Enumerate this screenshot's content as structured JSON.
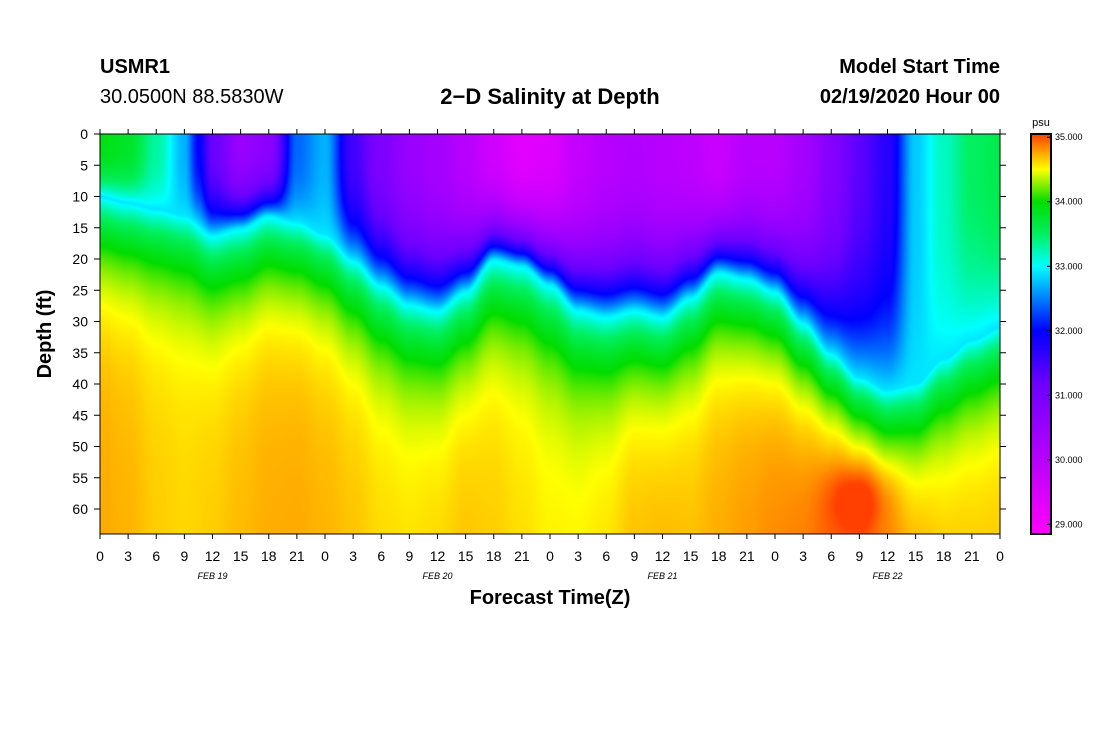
{
  "header": {
    "station": "USMR1",
    "coordinates": "30.0500N 88.5830W",
    "title": "2−D Salinity at Depth",
    "model_start_label": "Model Start Time",
    "model_start_value": "02/19/2020 Hour 00"
  },
  "chart_data": {
    "type": "heatmap",
    "title": "2−D Salinity at Depth",
    "xlabel": "Forecast Time(Z)",
    "ylabel": "Depth (ft)",
    "x_range_hours": [
      0,
      96
    ],
    "y_range_ft": [
      0,
      64
    ],
    "y_ticks": [
      0,
      5,
      10,
      15,
      20,
      25,
      30,
      35,
      40,
      45,
      50,
      55,
      60
    ],
    "x_tick_hours": [
      0,
      3,
      6,
      9,
      12,
      15,
      18,
      21,
      24,
      27,
      30,
      33,
      36,
      39,
      42,
      45,
      48,
      51,
      54,
      57,
      60,
      63,
      66,
      69,
      72,
      75,
      78,
      81,
      84,
      87,
      90,
      93,
      96
    ],
    "x_tick_labels": [
      "0",
      "3",
      "6",
      "9",
      "12",
      "15",
      "18",
      "21",
      "0",
      "3",
      "6",
      "9",
      "12",
      "15",
      "18",
      "21",
      "0",
      "3",
      "6",
      "9",
      "12",
      "15",
      "18",
      "21",
      "0",
      "3",
      "6",
      "9",
      "12",
      "15",
      "18",
      "21",
      "0"
    ],
    "date_labels": [
      {
        "hour": 12,
        "text": "FEB 19"
      },
      {
        "hour": 36,
        "text": "FEB 20"
      },
      {
        "hour": 60,
        "text": "FEB 21"
      },
      {
        "hour": 84,
        "text": "FEB 22"
      }
    ],
    "colorbar": {
      "unit": "psu",
      "min": 28.85,
      "max": 35.05,
      "tick_values": [
        29.0,
        30.0,
        31.0,
        32.0,
        33.0,
        34.0,
        35.0
      ],
      "tick_labels": [
        "29.000",
        "30.000",
        "31.000",
        "32.000",
        "33.000",
        "34.000",
        "35.000"
      ],
      "stops": [
        {
          "value": 28.85,
          "color": "#ff00ff"
        },
        {
          "value": 30.5,
          "color": "#9900ff"
        },
        {
          "value": 31.2,
          "color": "#6a00ff"
        },
        {
          "value": 32.0,
          "color": "#0000ff"
        },
        {
          "value": 33.0,
          "color": "#00ffff"
        },
        {
          "value": 33.5,
          "color": "#00f060"
        },
        {
          "value": 34.0,
          "color": "#00dd00"
        },
        {
          "value": 34.5,
          "color": "#ffff00"
        },
        {
          "value": 35.05,
          "color": "#ff4000"
        }
      ]
    },
    "field_model": {
      "surface_salinity_psu": [
        [
          0,
          33.9
        ],
        [
          3,
          33.8
        ],
        [
          6,
          33.3
        ],
        [
          9,
          32.7
        ],
        [
          10.5,
          32.0
        ],
        [
          12,
          31.2
        ],
        [
          15,
          30.5
        ],
        [
          18,
          30.7
        ],
        [
          21,
          32.4
        ],
        [
          24,
          32.7
        ],
        [
          27,
          31.5
        ],
        [
          30,
          30.9
        ],
        [
          33,
          30.5
        ],
        [
          36,
          30.3
        ],
        [
          39,
          30.0
        ],
        [
          42,
          29.6
        ],
        [
          45,
          29.3
        ],
        [
          48,
          29.4
        ],
        [
          51,
          29.8
        ],
        [
          54,
          30.0
        ],
        [
          57,
          30.1
        ],
        [
          60,
          30.0
        ],
        [
          63,
          29.9
        ],
        [
          66,
          29.7
        ],
        [
          69,
          30.0
        ],
        [
          72,
          30.0
        ],
        [
          75,
          30.3
        ],
        [
          78,
          30.8
        ],
        [
          81,
          31.3
        ],
        [
          84,
          31.7
        ],
        [
          87,
          32.8
        ],
        [
          90,
          33.2
        ],
        [
          93,
          33.5
        ],
        [
          96,
          33.6
        ]
      ],
      "halocline_depth_ft": [
        [
          0,
          10
        ],
        [
          3,
          11
        ],
        [
          6,
          12
        ],
        [
          9,
          13
        ],
        [
          12,
          16
        ],
        [
          15,
          15
        ],
        [
          18,
          13
        ],
        [
          21,
          14
        ],
        [
          24,
          16
        ],
        [
          27,
          20
        ],
        [
          30,
          24
        ],
        [
          33,
          27
        ],
        [
          36,
          28
        ],
        [
          39,
          25
        ],
        [
          42,
          20
        ],
        [
          45,
          21
        ],
        [
          48,
          24
        ],
        [
          51,
          28
        ],
        [
          54,
          29
        ],
        [
          57,
          28
        ],
        [
          60,
          29
        ],
        [
          63,
          26
        ],
        [
          66,
          22
        ],
        [
          69,
          23
        ],
        [
          72,
          25
        ],
        [
          75,
          30
        ],
        [
          78,
          35
        ],
        [
          81,
          39
        ],
        [
          84,
          41
        ],
        [
          87,
          40
        ],
        [
          90,
          36
        ],
        [
          93,
          33
        ],
        [
          96,
          31
        ]
      ],
      "bottom_salinity_psu": [
        [
          0,
          34.75
        ],
        [
          3,
          34.72
        ],
        [
          6,
          34.65
        ],
        [
          9,
          34.62
        ],
        [
          12,
          34.65
        ],
        [
          15,
          34.7
        ],
        [
          18,
          34.74
        ],
        [
          21,
          34.75
        ],
        [
          24,
          34.72
        ],
        [
          27,
          34.68
        ],
        [
          30,
          34.62
        ],
        [
          33,
          34.6
        ],
        [
          36,
          34.63
        ],
        [
          39,
          34.68
        ],
        [
          42,
          34.65
        ],
        [
          45,
          34.6
        ],
        [
          48,
          34.55
        ],
        [
          51,
          34.55
        ],
        [
          54,
          34.6
        ],
        [
          57,
          34.7
        ],
        [
          60,
          34.72
        ],
        [
          63,
          34.7
        ],
        [
          66,
          34.75
        ],
        [
          69,
          34.8
        ],
        [
          72,
          34.85
        ],
        [
          75,
          34.9
        ],
        [
          78,
          35.0
        ],
        [
          81,
          35.05
        ],
        [
          84,
          34.95
        ],
        [
          87,
          34.8
        ],
        [
          90,
          34.7
        ],
        [
          93,
          34.68
        ],
        [
          96,
          34.68
        ]
      ],
      "local_maximum": {
        "hour": 81,
        "depth_ft": 58,
        "salinity_psu": 35.05
      }
    }
  }
}
